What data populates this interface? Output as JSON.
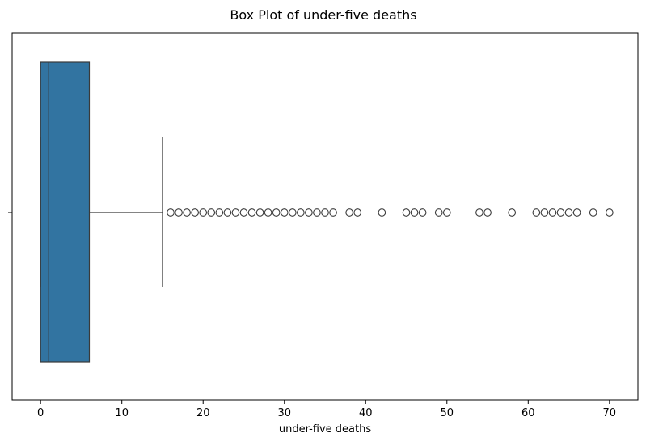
{
  "chart_data": {
    "type": "box",
    "title": "Box Plot of under-five deaths",
    "xlabel": "under-five deaths",
    "ylabel": "",
    "xlim": [
      -3.5,
      73.5
    ],
    "xticks": [
      0,
      10,
      20,
      30,
      40,
      50,
      60,
      70
    ],
    "orientation": "horizontal",
    "grid": false,
    "colors": {
      "box_fill": "#3274a1",
      "line": "#3a3a3a",
      "outlier_edge": "#3a3a3a"
    },
    "box": {
      "min": 0,
      "q1": 0,
      "median": 1,
      "q3": 6,
      "whisker_low": 0,
      "whisker_high": 15
    },
    "outliers": [
      16,
      17,
      18,
      19,
      20,
      21,
      22,
      23,
      24,
      25,
      26,
      27,
      28,
      29,
      30,
      31,
      32,
      33,
      34,
      35,
      36,
      38,
      39,
      42,
      45,
      46,
      47,
      49,
      50,
      54,
      55,
      58,
      61,
      62,
      63,
      64,
      65,
      66,
      68,
      70
    ]
  }
}
